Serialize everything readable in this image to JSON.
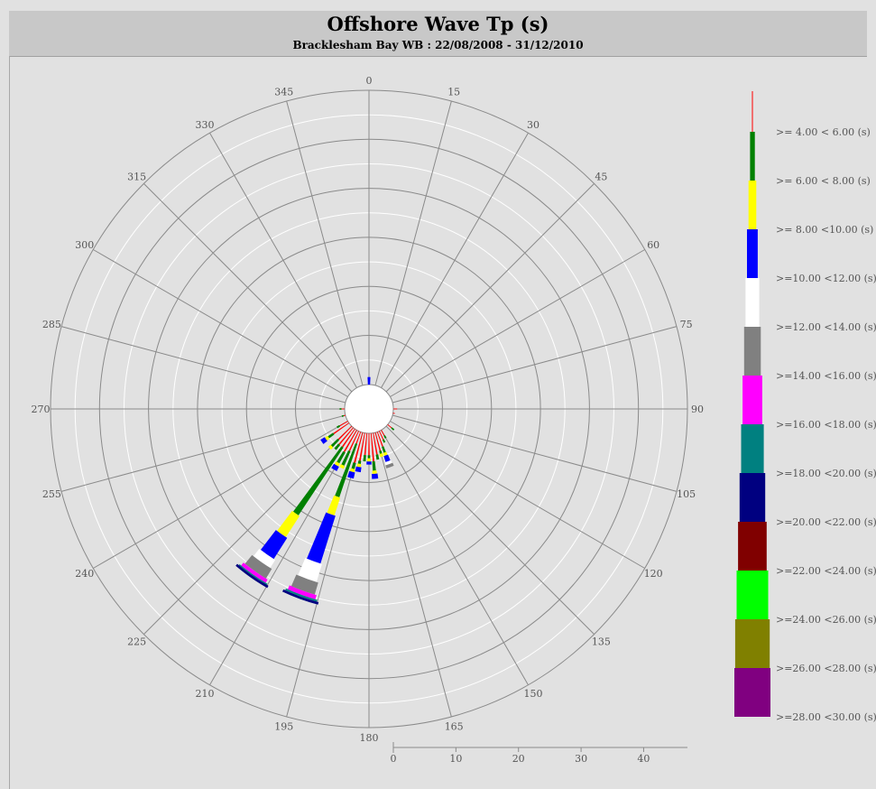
{
  "header": {
    "title": "Offshore Wave Tp (s)",
    "subtitle": "Bracklesham Bay WB : 22/08/2008 - 31/12/2010"
  },
  "chart_data": {
    "type": "wind-rose",
    "title": "Offshore Wave Tp (s)",
    "subtitle": "Bracklesham Bay WB : 22/08/2008 - 31/12/2010",
    "direction_labels": [
      "0",
      "15",
      "30",
      "45",
      "60",
      "75",
      "90",
      "105",
      "120",
      "135",
      "150",
      "165",
      "180",
      "195",
      "210",
      "225",
      "240",
      "255",
      "270",
      "285",
      "300",
      "315",
      "330",
      "345"
    ],
    "radial_ticks": [
      "0",
      "10",
      "20",
      "30",
      "40"
    ],
    "radial_max": 47,
    "grid": true,
    "legend_position": "right",
    "bins": [
      {
        "label": ">= 4.00 < 6.00 (s)",
        "color": "#ff0000"
      },
      {
        "label": ">= 6.00 < 8.00 (s)",
        "color": "#008000"
      },
      {
        "label": ">= 8.00 <10.00 (s)",
        "color": "#ffff00"
      },
      {
        "label": ">=10.00 <12.00 (s)",
        "color": "#0000ff"
      },
      {
        "label": ">=12.00 <14.00 (s)",
        "color": "#ffffff"
      },
      {
        "label": ">=14.00 <16.00 (s)",
        "color": "#808080"
      },
      {
        "label": ">=16.00 <18.00 (s)",
        "color": "#ff00ff"
      },
      {
        "label": ">=18.00 <20.00 (s)",
        "color": "#008080"
      },
      {
        "label": ">=20.00 <22.00 (s)",
        "color": "#000080"
      },
      {
        "label": ">=22.00 <24.00 (s)",
        "color": "#800000"
      },
      {
        "label": ">=24.00 <26.00 (s)",
        "color": "#00ff00"
      },
      {
        "label": ">=26.00 <28.00 (s)",
        "color": "#808000"
      },
      {
        "label": ">=28.00 <30.00 (s)",
        "color": "#800080"
      }
    ],
    "sectors": [
      {
        "direction": 0,
        "values": [
          0,
          0,
          0,
          1.2
        ]
      },
      {
        "direction": 90,
        "values": [
          0.6
        ]
      },
      {
        "direction": 100,
        "values": [
          0.3
        ]
      },
      {
        "direction": 130,
        "values": [
          0.8,
          0.5
        ]
      },
      {
        "direction": 150,
        "values": [
          1.0,
          0.5
        ]
      },
      {
        "direction": 155,
        "values": [
          1.5,
          0.5
        ]
      },
      {
        "direction": 160,
        "values": [
          2.5,
          1.0,
          0.5,
          1.0,
          0.5,
          0.5
        ]
      },
      {
        "direction": 165,
        "values": [
          3.0,
          0.5,
          0.5
        ]
      },
      {
        "direction": 170,
        "values": [
          3.5,
          0.8
        ]
      },
      {
        "direction": 175,
        "values": [
          4.5,
          1.5,
          0.5,
          0.8
        ]
      },
      {
        "direction": 180,
        "values": [
          3.5,
          0.5,
          0.5,
          0.5
        ]
      },
      {
        "direction": 185,
        "values": [
          3.5,
          1.0
        ]
      },
      {
        "direction": 190,
        "values": [
          4.5,
          0.5,
          0.5,
          0.8
        ]
      },
      {
        "direction": 195,
        "values": [
          5.0,
          1.0,
          0.5,
          1.0
        ]
      },
      {
        "direction": 200,
        "values": [
          2.0,
          9.0,
          3.0,
          8.0,
          3.0,
          2.0,
          0.7,
          0.3,
          0.4
        ]
      },
      {
        "direction": 205,
        "values": [
          3.5,
          2.5,
          0.5
        ]
      },
      {
        "direction": 210,
        "values": [
          4.0,
          2.0,
          0.5,
          0.8
        ]
      },
      {
        "direction": 215,
        "values": [
          3.5,
          13.0,
          4.0,
          4.0,
          1.5,
          1.8,
          0.6,
          0.2,
          0.4
        ]
      },
      {
        "direction": 220,
        "values": [
          3.5,
          1.0
        ]
      },
      {
        "direction": 225,
        "values": [
          3.0,
          1.5,
          0.5
        ]
      },
      {
        "direction": 235,
        "values": [
          3.0,
          1.0,
          0.5,
          0.8
        ]
      },
      {
        "direction": 240,
        "values": [
          1.5,
          0.5
        ]
      },
      {
        "direction": 255,
        "values": [
          0.3,
          0.3
        ]
      },
      {
        "direction": 270,
        "values": [
          0.5,
          0.3
        ]
      }
    ]
  }
}
